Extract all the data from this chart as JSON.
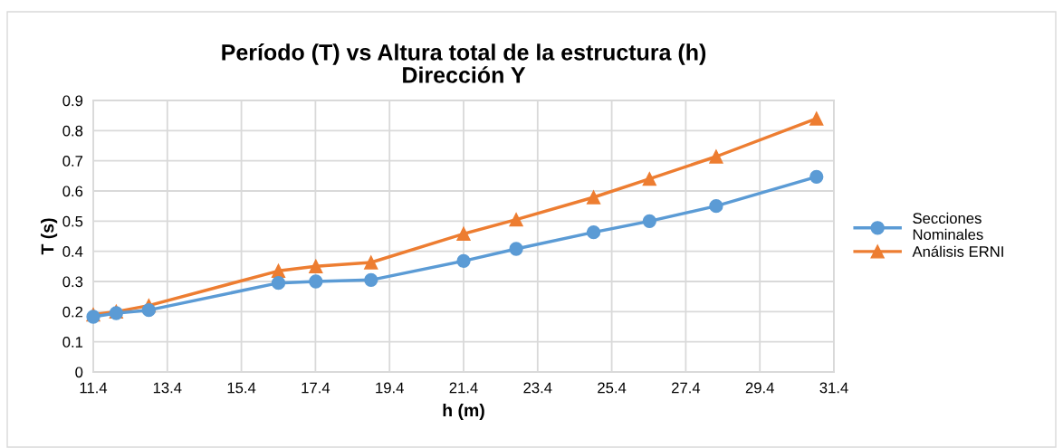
{
  "chart_data": {
    "type": "line",
    "title": "Período (T) vs Altura total de la estructura (h)\nDirección Y",
    "xlabel": "h (m)",
    "ylabel": "T (s)",
    "x": [
      11.4,
      12.02,
      12.9,
      16.4,
      17.41,
      18.9,
      21.4,
      22.82,
      24.91,
      26.42,
      28.22,
      30.93
    ],
    "series": [
      {
        "name": "Secciones\nNominales",
        "color": "#5b9bd5",
        "marker": "circle",
        "values": [
          0.183,
          0.195,
          0.205,
          0.295,
          0.3,
          0.305,
          0.368,
          0.408,
          0.463,
          0.5,
          0.55,
          0.647
        ]
      },
      {
        "name": "Análisis ERNI",
        "color": "#ed7d31",
        "marker": "triangle",
        "values": [
          0.19,
          0.2,
          0.22,
          0.335,
          0.35,
          0.363,
          0.458,
          0.505,
          0.579,
          0.64,
          0.714,
          0.84
        ]
      }
    ],
    "xlim": [
      11.4,
      31.4
    ],
    "xticks": [
      {
        "value": 11.4,
        "label": "11.4"
      },
      {
        "value": 13.4,
        "label": "13.4"
      },
      {
        "value": 15.4,
        "label": "15.4"
      },
      {
        "value": 17.4,
        "label": "17.4"
      },
      {
        "value": 19.4,
        "label": "19.4"
      },
      {
        "value": 21.4,
        "label": "21.4"
      },
      {
        "value": 23.4,
        "label": "23.4"
      },
      {
        "value": 25.4,
        "label": "25.4"
      },
      {
        "value": 27.4,
        "label": "27.4"
      },
      {
        "value": 29.4,
        "label": "29.4"
      },
      {
        "value": 31.4,
        "label": "31.4"
      }
    ],
    "ylim": [
      0,
      0.9
    ],
    "yticks": [
      0,
      0.1,
      0.2,
      0.3,
      0.4,
      0.5,
      0.6,
      0.7,
      0.8,
      0.9
    ],
    "grid": true,
    "legend": "right",
    "line_style": "solid"
  }
}
